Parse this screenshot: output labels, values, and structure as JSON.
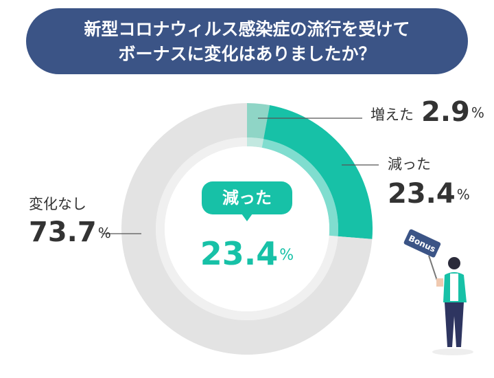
{
  "title_lines": [
    "新型コロナウィルス感染症の流行を受けて",
    "ボーナスに変化はありましたか？"
  ],
  "chart_data": {
    "type": "donut",
    "categories": [
      "増えた",
      "減った",
      "変化なし"
    ],
    "values": [
      2.9,
      23.4,
      73.7
    ],
    "colors": [
      "#8fd5c6",
      "#17c1a7",
      "#e3e3e3"
    ],
    "unit": "%"
  },
  "illustration_sign": "Bonus"
}
